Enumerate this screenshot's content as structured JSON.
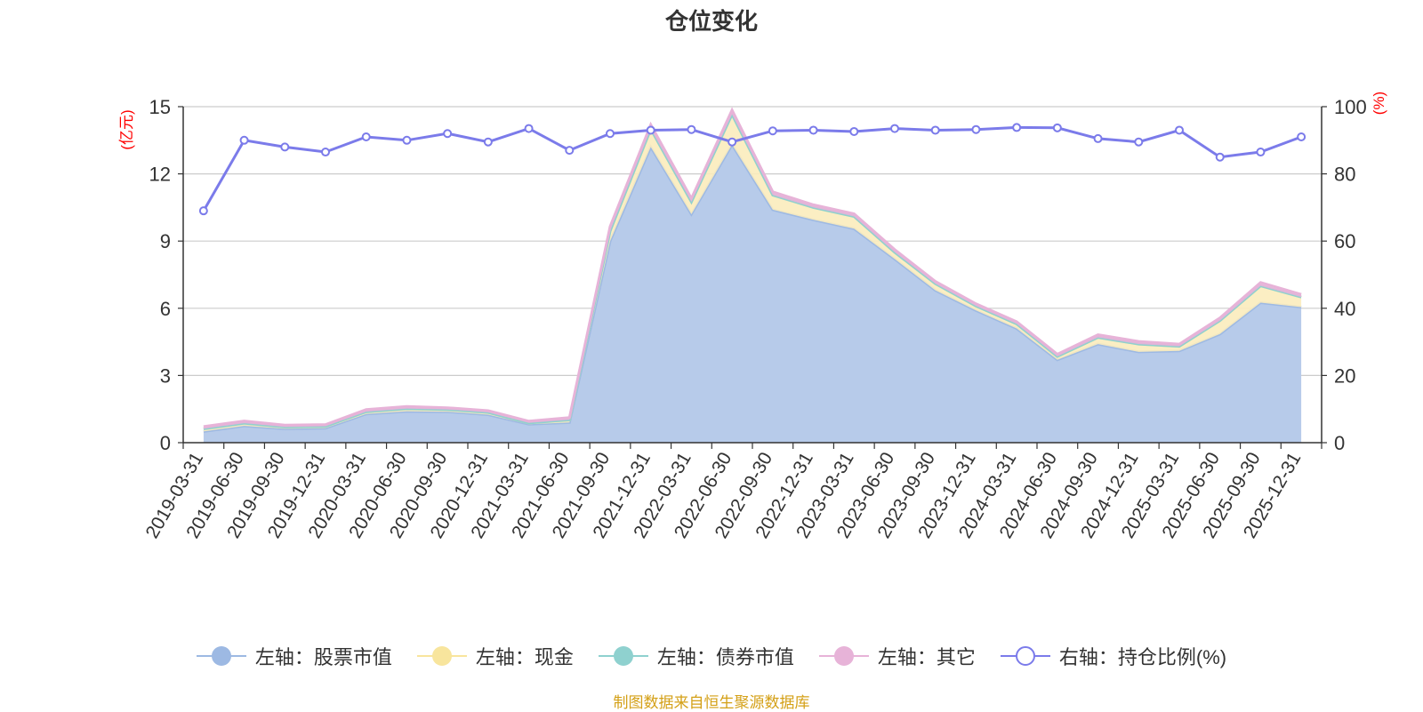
{
  "title": "仓位变化",
  "source": "制图数据来自恒生聚源数据库",
  "colors": {
    "stock": "#9db9e3",
    "stock_fill": "#b7cbea",
    "cash": "#f8e59d",
    "cash_fill": "#fbecbd",
    "bond": "#8fd1cf",
    "other": "#e7b3d8",
    "ratio": "#7b7bea",
    "axis_unit": "#ff0000"
  },
  "legend": [
    {
      "label": "左轴：股票市值",
      "key": "stock"
    },
    {
      "label": "左轴：现金",
      "key": "cash"
    },
    {
      "label": "左轴：债券市值",
      "key": "bond"
    },
    {
      "label": "左轴：其它",
      "key": "other"
    },
    {
      "label": "右轴：持仓比例(%)",
      "key": "ratio"
    }
  ],
  "chart_data": {
    "type": "area",
    "title": "仓位变化",
    "left_axis": {
      "unit": "(亿元)",
      "min": 0,
      "max": 15,
      "ticks": [
        0,
        3,
        6,
        9,
        12,
        15
      ]
    },
    "right_axis": {
      "unit": "(%)",
      "min": 0,
      "max": 100,
      "ticks": [
        0,
        20,
        40,
        60,
        80,
        100
      ]
    },
    "grid": true,
    "legend_position": "bottom",
    "stacked": true,
    "x": [
      "2019-03-31",
      "2019-06-30",
      "2019-09-30",
      "2019-12-31",
      "2020-03-31",
      "2020-06-30",
      "2020-09-30",
      "2020-12-31",
      "2021-03-31",
      "2021-06-30",
      "2021-09-30",
      "2021-12-31",
      "2022-03-31",
      "2022-06-30",
      "2022-09-30",
      "2022-12-31",
      "2023-03-31",
      "2023-06-30",
      "2023-09-30",
      "2023-12-31",
      "2024-03-31",
      "2024-06-30",
      "2024-09-30",
      "2024-12-31",
      "2025-03-31",
      "2025-06-30",
      "2025-09-30",
      "2025-12-31"
    ],
    "series": [
      {
        "name": "左轴：股票市值",
        "axis": "left",
        "values": [
          0.5,
          0.75,
          0.62,
          0.65,
          1.28,
          1.4,
          1.38,
          1.25,
          0.82,
          0.9,
          9.0,
          13.2,
          10.2,
          13.3,
          10.4,
          9.95,
          9.55,
          8.2,
          6.8,
          5.9,
          5.1,
          3.7,
          4.4,
          4.05,
          4.1,
          4.85,
          6.25,
          6.05
        ]
      },
      {
        "name": "左轴：现金",
        "axis": "left",
        "values": [
          0.12,
          0.12,
          0.08,
          0.08,
          0.1,
          0.12,
          0.1,
          0.1,
          0.06,
          0.12,
          0.45,
          0.8,
          0.55,
          1.35,
          0.65,
          0.55,
          0.55,
          0.3,
          0.3,
          0.2,
          0.2,
          0.15,
          0.3,
          0.35,
          0.2,
          0.6,
          0.75,
          0.45
        ]
      },
      {
        "name": "左轴：债券市值",
        "axis": "left",
        "values": [
          0,
          0,
          0,
          0,
          0,
          0,
          0,
          0,
          0,
          0,
          0,
          0,
          0,
          0,
          0,
          0,
          0,
          0,
          0,
          0,
          0,
          0,
          0,
          0,
          0,
          0,
          0,
          0
        ]
      },
      {
        "name": "左轴：其它",
        "axis": "left",
        "values": [
          0.1,
          0.1,
          0.08,
          0.08,
          0.1,
          0.1,
          0.08,
          0.08,
          0.08,
          0.1,
          0.2,
          0.2,
          0.15,
          0.2,
          0.15,
          0.12,
          0.12,
          0.12,
          0.1,
          0.1,
          0.1,
          0.1,
          0.12,
          0.12,
          0.1,
          0.12,
          0.15,
          0.12
        ]
      },
      {
        "name": "右轴：持仓比例(%)",
        "axis": "right",
        "values": [
          69,
          90,
          88,
          86.5,
          91,
          90,
          92,
          89.5,
          93.5,
          87,
          92,
          93,
          93.2,
          89.5,
          92.8,
          93,
          92.6,
          93.5,
          93,
          93.2,
          93.8,
          93.7,
          90.5,
          89.5,
          93,
          85,
          86.5,
          91
        ]
      }
    ]
  }
}
